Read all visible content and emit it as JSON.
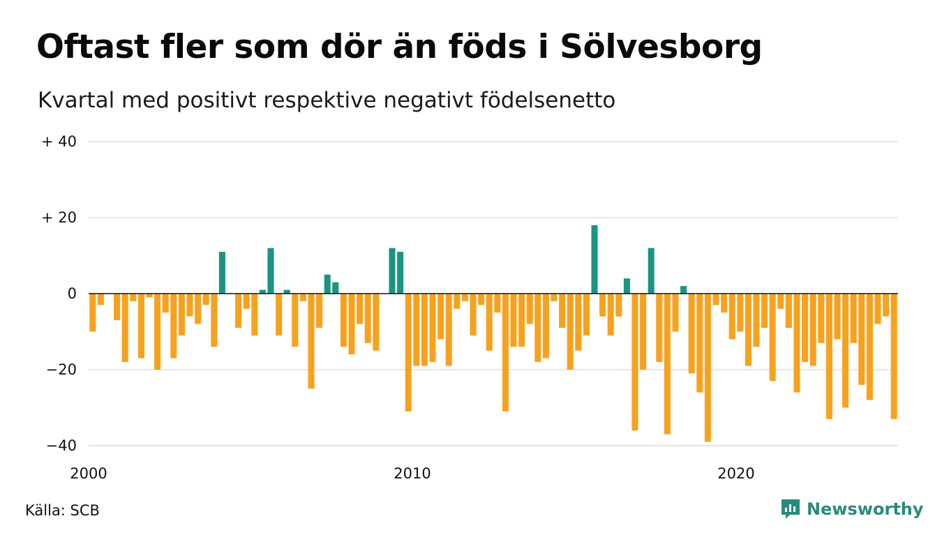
{
  "title": "Oftast fler som dör än föds i Sölvesborg",
  "subtitle": "Kvartal med positivt respektive negativt födelsenetto",
  "source": "Källa: SCB",
  "brand": {
    "name": "Newsworthy",
    "icon": "newsworthy-chart-bubble-icon",
    "color": "#2a8a7c"
  },
  "colors": {
    "positive": "#1a9583",
    "negative": "#f7a21f",
    "grid": "#dddddd",
    "zero_line": "#111111"
  },
  "chart_data": {
    "type": "bar",
    "title": "Oftast fler som dör än föds i Sölvesborg",
    "subtitle": "Kvartal med positivt respektive negativt födelsenetto",
    "xlabel": "",
    "ylabel": "",
    "ylim": [
      -40,
      40
    ],
    "y_ticks": [
      {
        "value": 40,
        "label": "+ 40"
      },
      {
        "value": 20,
        "label": "+ 20"
      },
      {
        "value": 0,
        "label": "0"
      },
      {
        "value": -20,
        "label": "−20"
      },
      {
        "value": -40,
        "label": "−40"
      }
    ],
    "x_ticks": [
      {
        "year": 2000,
        "label": "2000"
      },
      {
        "year": 2010,
        "label": "2010"
      },
      {
        "year": 2020,
        "label": "2020"
      }
    ],
    "grid": true,
    "legend": "none",
    "x_start": "2000-Q1",
    "x_end": "2024-Q4",
    "periods_per_year": 4,
    "quarters": [
      "2000-Q1",
      "2000-Q2",
      "2000-Q3",
      "2000-Q4",
      "2001-Q1",
      "2001-Q2",
      "2001-Q3",
      "2001-Q4",
      "2002-Q1",
      "2002-Q2",
      "2002-Q3",
      "2002-Q4",
      "2003-Q1",
      "2003-Q2",
      "2003-Q3",
      "2003-Q4",
      "2004-Q1",
      "2004-Q2",
      "2004-Q3",
      "2004-Q4",
      "2005-Q1",
      "2005-Q2",
      "2005-Q3",
      "2005-Q4",
      "2006-Q1",
      "2006-Q2",
      "2006-Q3",
      "2006-Q4",
      "2007-Q1",
      "2007-Q2",
      "2007-Q3",
      "2007-Q4",
      "2008-Q1",
      "2008-Q2",
      "2008-Q3",
      "2008-Q4",
      "2009-Q1",
      "2009-Q2",
      "2009-Q3",
      "2009-Q4",
      "2010-Q1",
      "2010-Q2",
      "2010-Q3",
      "2010-Q4",
      "2011-Q1",
      "2011-Q2",
      "2011-Q3",
      "2011-Q4",
      "2012-Q1",
      "2012-Q2",
      "2012-Q3",
      "2012-Q4",
      "2013-Q1",
      "2013-Q2",
      "2013-Q3",
      "2013-Q4",
      "2014-Q1",
      "2014-Q2",
      "2014-Q3",
      "2014-Q4",
      "2015-Q1",
      "2015-Q2",
      "2015-Q3",
      "2015-Q4",
      "2016-Q1",
      "2016-Q2",
      "2016-Q3",
      "2016-Q4",
      "2017-Q1",
      "2017-Q2",
      "2017-Q3",
      "2017-Q4",
      "2018-Q1",
      "2018-Q2",
      "2018-Q3",
      "2018-Q4",
      "2019-Q1",
      "2019-Q2",
      "2019-Q3",
      "2019-Q4",
      "2020-Q1",
      "2020-Q2",
      "2020-Q3",
      "2020-Q4",
      "2021-Q1",
      "2021-Q2",
      "2021-Q3",
      "2021-Q4",
      "2022-Q1",
      "2022-Q2",
      "2022-Q3",
      "2022-Q4",
      "2023-Q1",
      "2023-Q2",
      "2023-Q3",
      "2023-Q4",
      "2024-Q1",
      "2024-Q2",
      "2024-Q3",
      "2024-Q4"
    ],
    "values": [
      -10,
      -3,
      0,
      -7,
      -18,
      -2,
      -17,
      -1,
      -20,
      -5,
      -17,
      -11,
      -6,
      -8,
      -3,
      -14,
      11,
      0,
      -9,
      -4,
      -11,
      1,
      12,
      -11,
      1,
      -14,
      -2,
      -25,
      -9,
      5,
      3,
      -14,
      -16,
      -8,
      -13,
      -15,
      0,
      12,
      11,
      -31,
      -19,
      -19,
      -18,
      -12,
      -19,
      -4,
      -2,
      -11,
      -3,
      -15,
      -5,
      -31,
      -14,
      -14,
      -8,
      -18,
      -17,
      -2,
      -9,
      -20,
      -15,
      -11,
      18,
      -6,
      -11,
      -6,
      4,
      -36,
      -20,
      12,
      -18,
      -37,
      -10,
      2,
      -21,
      -26,
      -39,
      -3,
      -5,
      -12,
      -10,
      -19,
      -14,
      -9,
      -23,
      -4,
      -9,
      -26,
      -18,
      -19,
      -13,
      -33,
      -12,
      -30,
      -13,
      -24,
      -28,
      -8,
      -6,
      -33
    ]
  }
}
